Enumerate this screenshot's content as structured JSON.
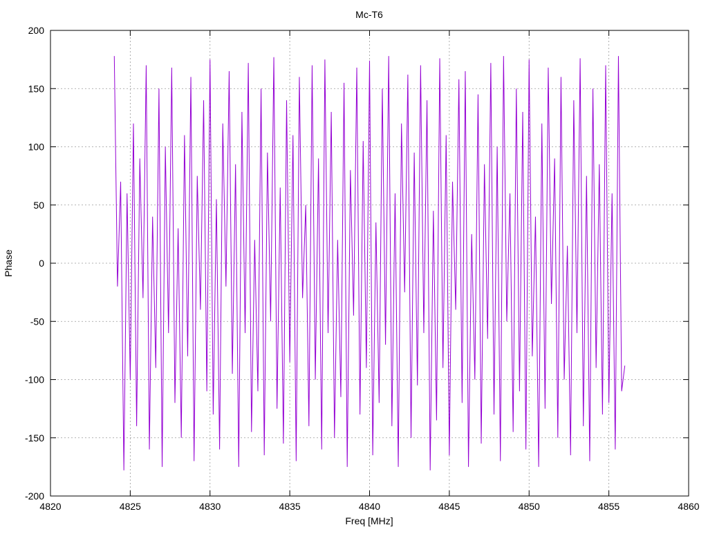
{
  "chart_data": {
    "type": "line",
    "title": "Mc-T6",
    "x_label": "Freq [MHz]",
    "y_label": "Phase",
    "color": "#9400d3",
    "grid": true,
    "xlim": [
      4820,
      4860
    ],
    "xticks": [
      4820,
      4825,
      4830,
      4835,
      4840,
      4845,
      4850,
      4855,
      4860
    ],
    "ylim": [
      -200,
      200
    ],
    "yticks": [
      -200,
      -150,
      -100,
      -50,
      0,
      50,
      100,
      150,
      200
    ],
    "x": [
      4824.0,
      4824.2,
      4824.4,
      4824.6,
      4824.8,
      4825.0,
      4825.2,
      4825.4,
      4825.6,
      4825.8,
      4826.0,
      4826.2,
      4826.4,
      4826.6,
      4826.8,
      4827.0,
      4827.2,
      4827.4,
      4827.6,
      4827.8,
      4828.0,
      4828.2,
      4828.4,
      4828.6,
      4828.8,
      4829.0,
      4829.2,
      4829.4,
      4829.6,
      4829.8,
      4830.0,
      4830.2,
      4830.4,
      4830.6,
      4830.8,
      4831.0,
      4831.2,
      4831.4,
      4831.6,
      4831.8,
      4832.0,
      4832.2,
      4832.4,
      4832.6,
      4832.8,
      4833.0,
      4833.2,
      4833.4,
      4833.6,
      4833.8,
      4834.0,
      4834.2,
      4834.4,
      4834.6,
      4834.8,
      4835.0,
      4835.2,
      4835.4,
      4835.6,
      4835.8,
      4836.0,
      4836.2,
      4836.4,
      4836.6,
      4836.8,
      4837.0,
      4837.2,
      4837.4,
      4837.6,
      4837.8,
      4838.0,
      4838.2,
      4838.4,
      4838.6,
      4838.8,
      4839.0,
      4839.2,
      4839.4,
      4839.6,
      4839.8,
      4840.0,
      4840.2,
      4840.4,
      4840.6,
      4840.8,
      4841.0,
      4841.2,
      4841.4,
      4841.6,
      4841.8,
      4842.0,
      4842.2,
      4842.4,
      4842.6,
      4842.8,
      4843.0,
      4843.2,
      4843.4,
      4843.6,
      4843.8,
      4844.0,
      4844.2,
      4844.4,
      4844.6,
      4844.8,
      4845.0,
      4845.2,
      4845.4,
      4845.6,
      4845.8,
      4846.0,
      4846.2,
      4846.4,
      4846.6,
      4846.8,
      4847.0,
      4847.2,
      4847.4,
      4847.6,
      4847.8,
      4848.0,
      4848.2,
      4848.4,
      4848.6,
      4848.8,
      4849.0,
      4849.2,
      4849.4,
      4849.6,
      4849.8,
      4850.0,
      4850.2,
      4850.4,
      4850.6,
      4850.8,
      4851.0,
      4851.2,
      4851.4,
      4851.6,
      4851.8,
      4852.0,
      4852.2,
      4852.4,
      4852.6,
      4852.8,
      4853.0,
      4853.2,
      4853.4,
      4853.6,
      4853.8,
      4854.0,
      4854.2,
      4854.4,
      4854.6,
      4854.8,
      4855.0,
      4855.2,
      4855.4,
      4855.6,
      4855.8,
      4856.0
    ],
    "values": [
      178,
      -20,
      70,
      -178,
      60,
      -100,
      120,
      -140,
      90,
      -30,
      170,
      -160,
      40,
      -90,
      150,
      -175,
      100,
      -60,
      168,
      -120,
      30,
      -150,
      110,
      -80,
      160,
      -170,
      75,
      -40,
      140,
      -110,
      175,
      -130,
      55,
      -160,
      120,
      -20,
      165,
      -95,
      85,
      -175,
      130,
      -60,
      172,
      -145,
      20,
      -110,
      150,
      -165,
      95,
      -50,
      177,
      -125,
      65,
      -155,
      140,
      -85,
      110,
      -170,
      160,
      -30,
      50,
      -140,
      170,
      -100,
      90,
      -160,
      175,
      -60,
      130,
      -150,
      20,
      -115,
      155,
      -175,
      80,
      -45,
      168,
      -130,
      105,
      -90,
      174,
      -165,
      35,
      -120,
      150,
      -70,
      178,
      -140,
      60,
      -175,
      120,
      -25,
      162,
      -150,
      95,
      -105,
      170,
      -60,
      140,
      -178,
      45,
      -135,
      176,
      -90,
      110,
      -165,
      70,
      -40,
      158,
      -120,
      165,
      -175,
      25,
      -100,
      145,
      -155,
      85,
      -65,
      172,
      -130,
      100,
      -170,
      178,
      -50,
      60,
      -145,
      150,
      -110,
      130,
      -160,
      175,
      -80,
      40,
      -175,
      120,
      -125,
      168,
      -35,
      90,
      -150,
      160,
      -100,
      15,
      -165,
      140,
      -60,
      176,
      -140,
      75,
      -170,
      150,
      -90,
      85,
      -130,
      170,
      -120,
      60,
      -160,
      178,
      -110,
      -88
    ]
  }
}
